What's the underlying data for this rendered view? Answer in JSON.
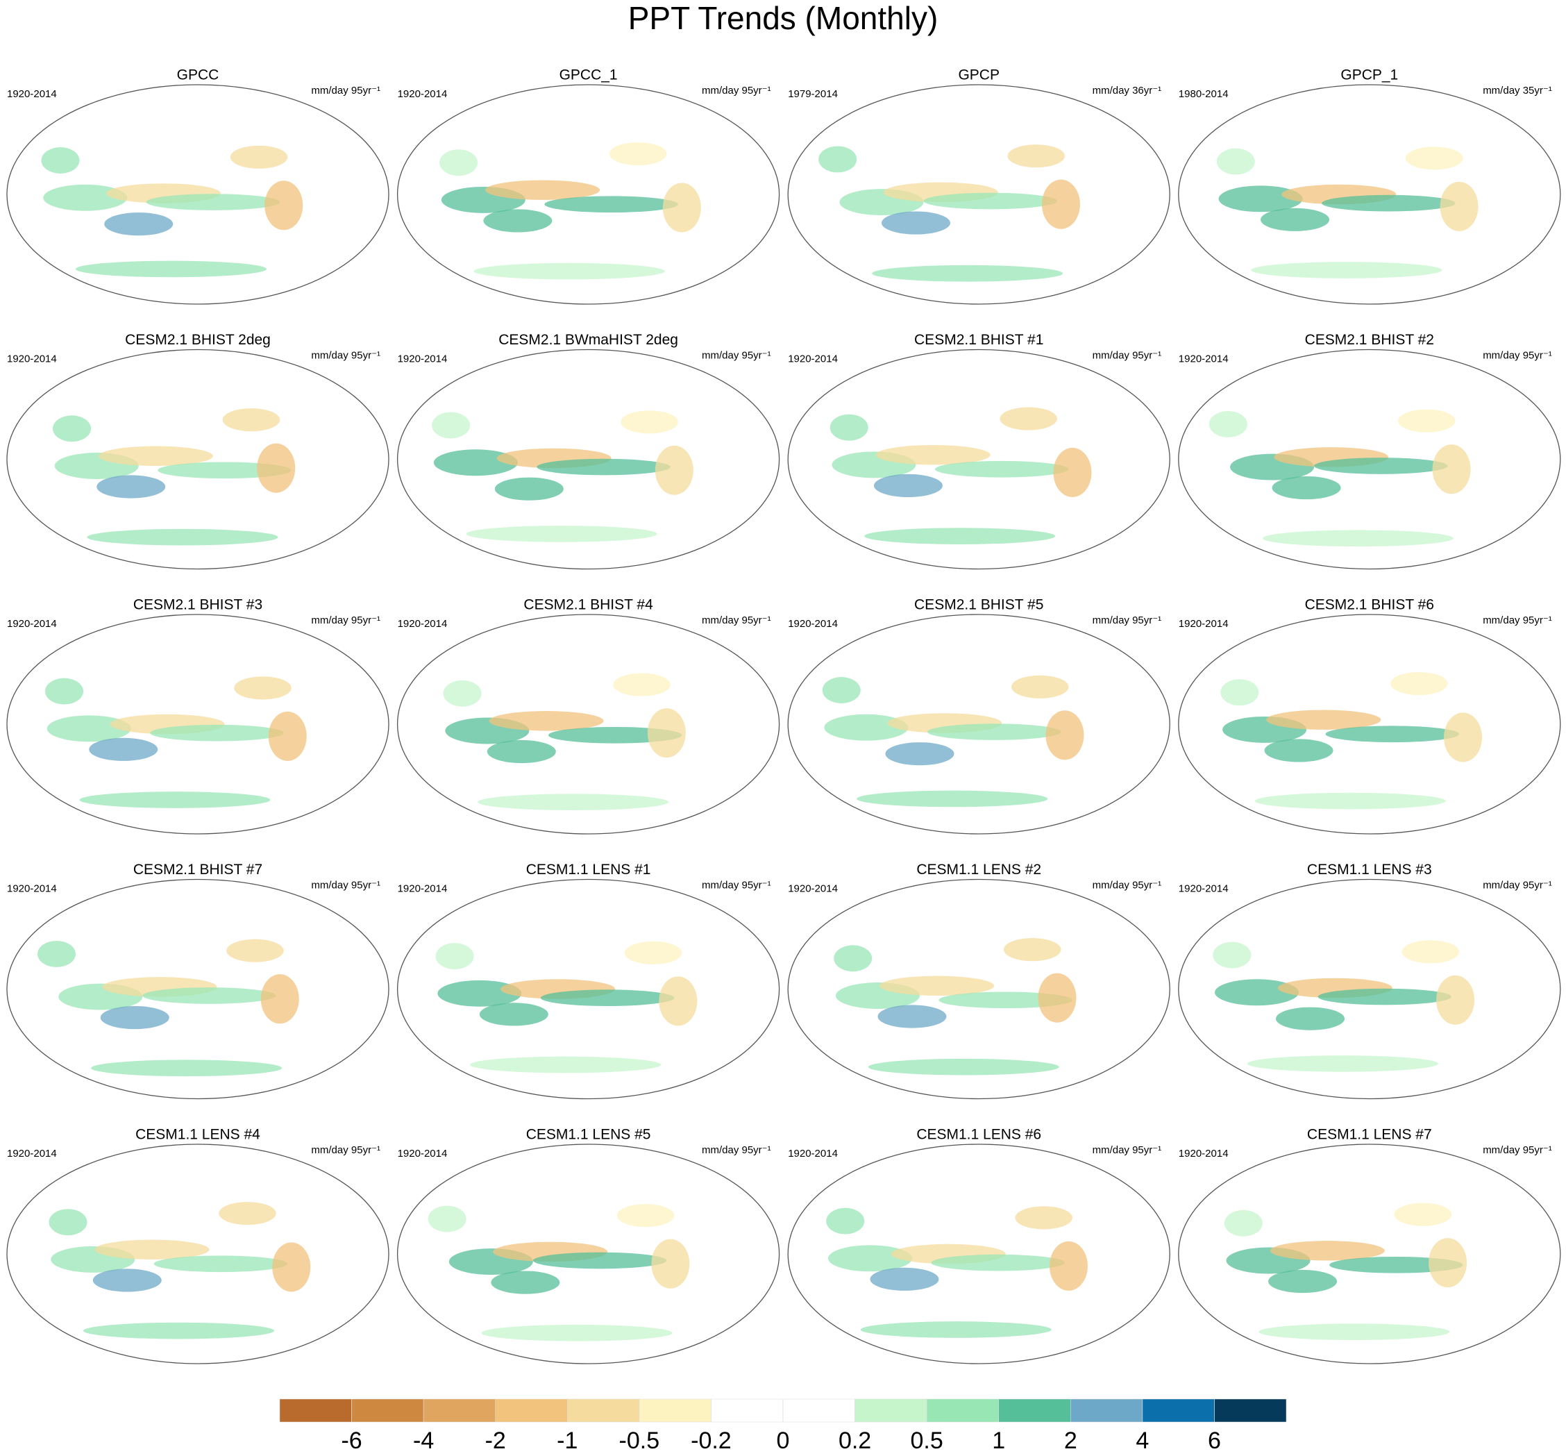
{
  "title": "PPT Trends (Monthly)",
  "panels": [
    {
      "title": "GPCC",
      "period": "1920-2014",
      "units": "mm/day 95yr⁻¹"
    },
    {
      "title": "GPCC_1",
      "period": "1920-2014",
      "units": "mm/day 95yr⁻¹"
    },
    {
      "title": "GPCP",
      "period": "1979-2014",
      "units": "mm/day 36yr⁻¹"
    },
    {
      "title": "GPCP_1",
      "period": "1980-2014",
      "units": "mm/day 35yr⁻¹"
    },
    {
      "title": "CESM2.1 BHIST 2deg",
      "period": "1920-2014",
      "units": "mm/day 95yr⁻¹"
    },
    {
      "title": "CESM2.1 BWmaHIST 2deg",
      "period": "1920-2014",
      "units": "mm/day 95yr⁻¹"
    },
    {
      "title": "CESM2.1 BHIST #1",
      "period": "1920-2014",
      "units": "mm/day 95yr⁻¹"
    },
    {
      "title": "CESM2.1 BHIST #2",
      "period": "1920-2014",
      "units": "mm/day 95yr⁻¹"
    },
    {
      "title": "CESM2.1 BHIST #3",
      "period": "1920-2014",
      "units": "mm/day 95yr⁻¹"
    },
    {
      "title": "CESM2.1 BHIST #4",
      "period": "1920-2014",
      "units": "mm/day 95yr⁻¹"
    },
    {
      "title": "CESM2.1 BHIST #5",
      "period": "1920-2014",
      "units": "mm/day 95yr⁻¹"
    },
    {
      "title": "CESM2.1 BHIST #6",
      "period": "1920-2014",
      "units": "mm/day 95yr⁻¹"
    },
    {
      "title": "CESM2.1 BHIST #7",
      "period": "1920-2014",
      "units": "mm/day 95yr⁻¹"
    },
    {
      "title": "CESM1.1 LENS #1",
      "period": "1920-2014",
      "units": "mm/day 95yr⁻¹"
    },
    {
      "title": "CESM1.1 LENS #2",
      "period": "1920-2014",
      "units": "mm/day 95yr⁻¹"
    },
    {
      "title": "CESM1.1 LENS #3",
      "period": "1920-2014",
      "units": "mm/day 95yr⁻¹"
    },
    {
      "title": "CESM1.1 LENS #4",
      "period": "1920-2014",
      "units": "mm/day 95yr⁻¹"
    },
    {
      "title": "CESM1.1 LENS #5",
      "period": "1920-2014",
      "units": "mm/day 95yr⁻¹"
    },
    {
      "title": "CESM1.1 LENS #6",
      "period": "1920-2014",
      "units": "mm/day 95yr⁻¹"
    },
    {
      "title": "CESM1.1 LENS #7",
      "period": "1920-2014",
      "units": "mm/day 95yr⁻¹"
    }
  ],
  "colorbar": {
    "levels": [
      -6,
      -4,
      -2,
      -1,
      -0.5,
      -0.2,
      0,
      0.2,
      0.5,
      1,
      2,
      4,
      6
    ],
    "colors": [
      "#b86b2d",
      "#cf8840",
      "#e0a55e",
      "#f2c37c",
      "#f5dc9e",
      "#fdf3c0",
      "#ffffff",
      "#ffffff",
      "#c6f5cc",
      "#99e6b5",
      "#55bf9a",
      "#6ea8c8",
      "#0b6fab",
      "#063a5a"
    ]
  }
}
